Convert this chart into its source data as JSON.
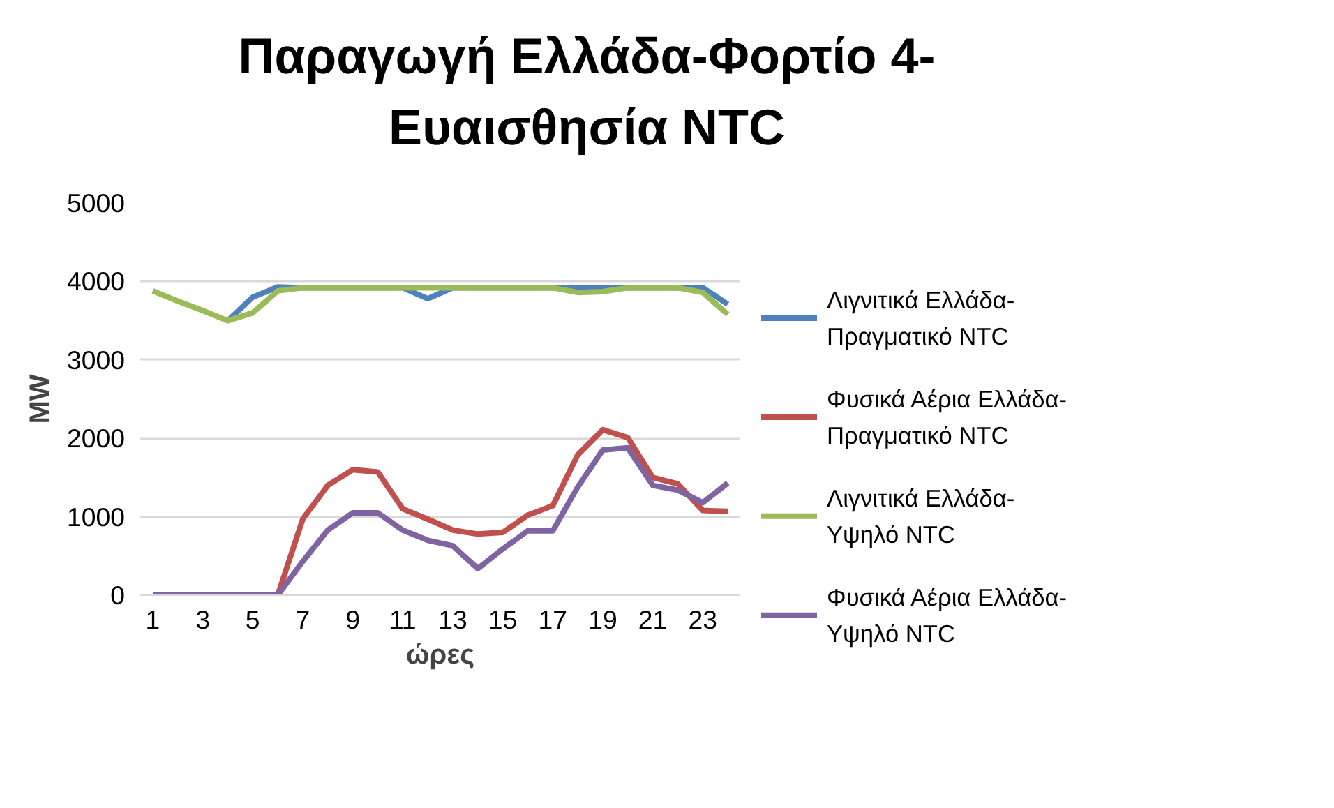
{
  "chart_data": {
    "type": "line",
    "title": "Παραγωγή Ελλάδα-Φορτίο 4-\nΕυαισθησία NTC",
    "xlabel": "ώρες",
    "ylabel": "MW",
    "x": [
      1,
      2,
      3,
      4,
      5,
      6,
      7,
      8,
      9,
      10,
      11,
      12,
      13,
      14,
      15,
      16,
      17,
      18,
      19,
      20,
      21,
      22,
      23,
      24
    ],
    "xlim": [
      0.5,
      24.5
    ],
    "xticks": [
      1,
      3,
      5,
      7,
      9,
      11,
      13,
      15,
      17,
      19,
      21,
      23
    ],
    "ylim": [
      0,
      5000
    ],
    "yticks": [
      0,
      1000,
      2000,
      3000,
      4000,
      5000
    ],
    "grid": "y",
    "legend": "right",
    "marker": "none",
    "line_style": "solid",
    "series": [
      {
        "name": "Λιγνιτικά Ελλάδα-Πραγματικό NTC",
        "color": "#4f81bd",
        "values": [
          null,
          null,
          null,
          3500,
          3800,
          3930,
          3920,
          3920,
          3920,
          3920,
          3920,
          3780,
          3920,
          3920,
          3920,
          3920,
          3920,
          3920,
          3920,
          3920,
          3920,
          3920,
          3920,
          3710
        ]
      },
      {
        "name": "Φυσικά Αέρια Ελλάδα-Πραγματικό NTC",
        "color": "#c0504d",
        "values": [
          null,
          null,
          null,
          null,
          null,
          0,
          970,
          1400,
          1600,
          1570,
          1100,
          970,
          830,
          780,
          800,
          1020,
          1140,
          1790,
          2110,
          2010,
          1500,
          1420,
          1080,
          1070
        ]
      },
      {
        "name": "Λιγνιτικά Ελλάδα-Υψηλό NTC",
        "color": "#9bbb59",
        "values": [
          3880,
          3750,
          3630,
          3500,
          3600,
          3880,
          3920,
          3920,
          3920,
          3920,
          3920,
          3920,
          3920,
          3920,
          3920,
          3920,
          3920,
          3860,
          3870,
          3920,
          3920,
          3920,
          3860,
          3580
        ]
      },
      {
        "name": "Φυσικά Αέρια Ελλάδα-Υψηλό NTC",
        "color": "#8064a2",
        "values": [
          0,
          0,
          0,
          0,
          0,
          0,
          430,
          830,
          1050,
          1050,
          830,
          700,
          630,
          340,
          590,
          820,
          820,
          1380,
          1850,
          1880,
          1400,
          1340,
          1180,
          1430
        ]
      }
    ]
  }
}
